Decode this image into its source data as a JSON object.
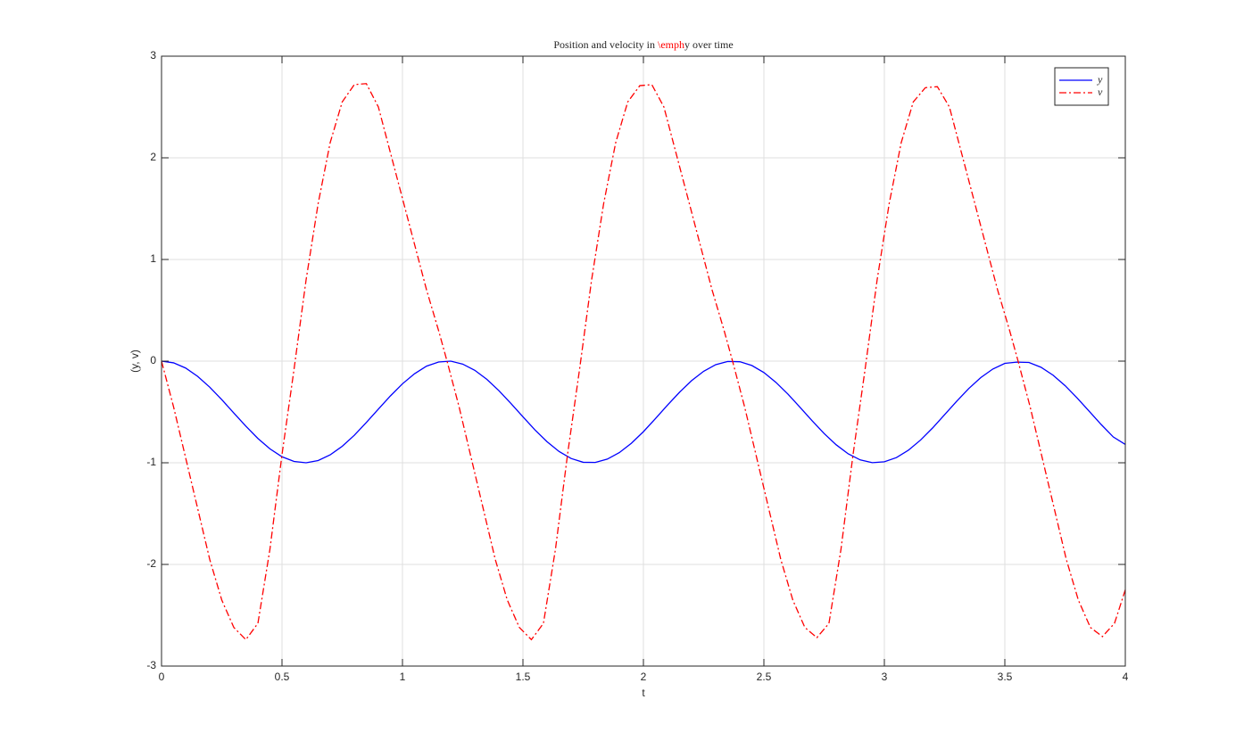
{
  "chart_data": {
    "type": "line",
    "title": {
      "before": "Position and velocity in ",
      "highlight": "\\emph",
      "after": "y over time",
      "highlight_color": "#ff0000"
    },
    "xlabel": "t",
    "ylabel": "(y, v)",
    "xlim": [
      0,
      4
    ],
    "ylim": [
      -3,
      3
    ],
    "xticks": [
      0,
      0.5,
      1,
      1.5,
      2,
      2.5,
      3,
      3.5,
      4
    ],
    "yticks": [
      -3,
      -2,
      -1,
      0,
      1,
      2,
      3
    ],
    "grid": true,
    "legend": "northeast",
    "series": [
      {
        "name": "y",
        "color": "#0000ff",
        "line_style": "solid",
        "x": [
          0,
          0.05,
          0.1,
          0.15,
          0.2,
          0.25,
          0.3,
          0.35,
          0.4,
          0.45,
          0.5,
          0.55,
          0.6,
          0.65,
          0.7,
          0.75,
          0.8,
          0.85,
          0.9,
          0.95,
          1,
          1.05,
          1.1,
          1.15,
          1.2,
          1.25,
          1.3,
          1.35,
          1.4,
          1.45,
          1.5,
          1.55,
          1.6,
          1.65,
          1.7,
          1.75,
          1.8,
          1.85,
          1.9,
          1.95,
          2,
          2.05,
          2.1,
          2.15,
          2.2,
          2.25,
          2.3,
          2.35,
          2.4,
          2.45,
          2.5,
          2.55,
          2.6,
          2.65,
          2.7,
          2.75,
          2.8,
          2.85,
          2.9,
          2.95,
          3,
          3.05,
          3.1,
          3.15,
          3.2,
          3.25,
          3.3,
          3.35,
          3.4,
          3.45,
          3.5,
          3.55,
          3.6,
          3.65,
          3.7,
          3.75,
          3.8,
          3.85,
          3.9,
          3.95,
          4
        ],
        "values": [
          0,
          -0.017,
          -0.068,
          -0.15,
          -0.256,
          -0.379,
          -0.51,
          -0.64,
          -0.761,
          -0.863,
          -0.941,
          -0.987,
          -1,
          -0.978,
          -0.922,
          -0.838,
          -0.73,
          -0.604,
          -0.472,
          -0.342,
          -0.223,
          -0.124,
          -0.049,
          -0.009,
          0,
          -0.029,
          -0.09,
          -0.179,
          -0.29,
          -0.416,
          -0.548,
          -0.677,
          -0.793,
          -0.889,
          -0.958,
          -0.995,
          -0.997,
          -0.964,
          -0.9,
          -0.808,
          -0.694,
          -0.565,
          -0.433,
          -0.306,
          -0.192,
          -0.1,
          -0.035,
          -0.003,
          -0.006,
          -0.043,
          -0.112,
          -0.209,
          -0.325,
          -0.454,
          -0.586,
          -0.712,
          -0.823,
          -0.912,
          -0.972,
          -0.999,
          -0.99,
          -0.949,
          -0.876,
          -0.777,
          -0.658,
          -0.527,
          -0.395,
          -0.27,
          -0.162,
          -0.078,
          -0.022,
          -0.01,
          -0.013,
          -0.06,
          -0.138,
          -0.241,
          -0.362,
          -0.493,
          -0.624,
          -0.746,
          -0.82
        ]
      },
      {
        "name": "v",
        "color": "#ff0000",
        "line_style": "dashdot",
        "x": [
          0,
          0.05,
          0.1,
          0.15,
          0.2,
          0.25,
          0.3,
          0.35,
          0.4,
          0.45,
          0.5,
          0.55,
          0.6,
          0.65,
          0.7,
          0.75,
          0.8,
          0.85,
          0.9,
          0.95,
          1,
          1.05,
          1.1,
          1.15,
          1.185,
          1.235,
          1.285,
          1.335,
          1.385,
          1.435,
          1.485,
          1.535,
          1.585,
          1.635,
          1.685,
          1.735,
          1.785,
          1.835,
          1.885,
          1.935,
          1.985,
          2.035,
          2.085,
          2.135,
          2.185,
          2.235,
          2.285,
          2.335,
          2.37,
          2.42,
          2.47,
          2.52,
          2.57,
          2.62,
          2.67,
          2.72,
          2.77,
          2.82,
          2.87,
          2.92,
          2.97,
          3.02,
          3.07,
          3.12,
          3.17,
          3.22,
          3.27,
          3.32,
          3.37,
          3.42,
          3.47,
          3.52,
          3.555,
          3.605,
          3.655,
          3.705,
          3.755,
          3.805,
          3.855,
          3.905,
          3.955,
          4
        ],
        "values": [
          0,
          -0.45,
          -0.95,
          -1.45,
          -1.95,
          -2.35,
          -2.62,
          -2.74,
          -2.58,
          -1.85,
          -0.92,
          -0.08,
          0.8,
          1.55,
          2.15,
          2.55,
          2.72,
          2.73,
          2.5,
          2.05,
          1.6,
          1.15,
          0.7,
          0.3,
          0,
          -0.45,
          -0.95,
          -1.45,
          -1.95,
          -2.35,
          -2.62,
          -2.74,
          -2.58,
          -1.85,
          -0.92,
          -0.08,
          0.8,
          1.55,
          2.15,
          2.55,
          2.71,
          2.72,
          2.5,
          2.05,
          1.6,
          1.15,
          0.7,
          0.3,
          0,
          -0.45,
          -0.95,
          -1.45,
          -1.95,
          -2.35,
          -2.62,
          -2.72,
          -2.58,
          -1.85,
          -0.92,
          -0.08,
          0.8,
          1.55,
          2.15,
          2.55,
          2.69,
          2.7,
          2.5,
          2.05,
          1.6,
          1.15,
          0.7,
          0.3,
          0,
          -0.45,
          -0.95,
          -1.45,
          -1.95,
          -2.35,
          -2.62,
          -2.71,
          -2.58,
          -2.25
        ]
      }
    ]
  }
}
